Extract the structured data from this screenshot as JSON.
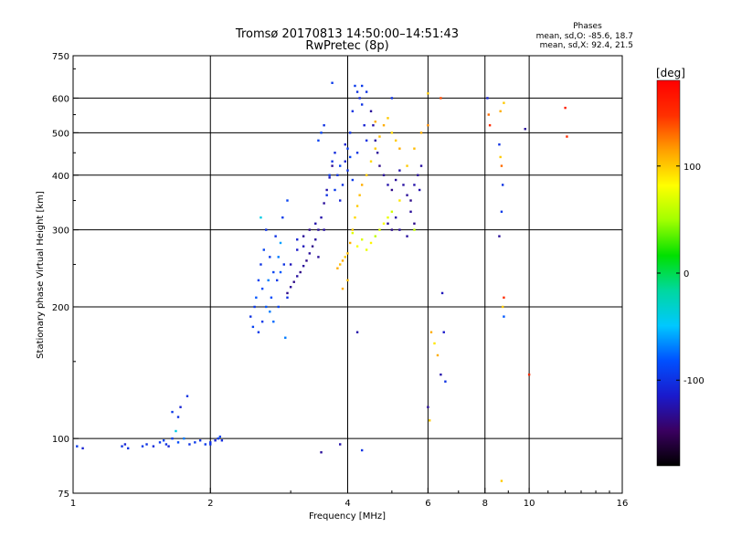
{
  "chart_data": {
    "type": "scatter",
    "title": "Tromsø 20170813 14:50:00–14:51:43",
    "subtitle": "RwPretec (8p)",
    "stats_title": "Phases",
    "stats": [
      "mean, sd,O: -85.6, 18.7",
      "mean, sd,X:  92.4, 21.5"
    ],
    "xlabel": "Frequency [MHz]",
    "ylabel": "Stationary phase Virtual Height [km]",
    "x_scale": "log",
    "y_scale": "log",
    "xlim": [
      1,
      16
    ],
    "ylim": [
      75,
      750
    ],
    "x_ticks": [
      1,
      2,
      4,
      6,
      8,
      10,
      16
    ],
    "y_ticks": [
      75,
      100,
      200,
      300,
      400,
      500,
      600,
      750
    ],
    "x_gridlines": [
      2,
      4,
      6,
      8,
      10
    ],
    "y_gridlines": [
      100,
      200,
      300,
      400,
      500,
      600
    ],
    "grid": true,
    "colorbar": {
      "label": "[deg]",
      "range": [
        -180,
        180
      ],
      "ticks": [
        -100,
        0,
        100
      ],
      "colors": [
        "#000000",
        "#3a0060",
        "#1a1acc",
        "#0050ff",
        "#00c8ff",
        "#00d8a0",
        "#00e000",
        "#a0ff00",
        "#ffff00",
        "#ffa000",
        "#ff3000",
        "#ff0000"
      ]
    },
    "series": [
      {
        "points": [
          [
            1.02,
            96,
            -95
          ],
          [
            1.05,
            95,
            -110
          ],
          [
            1.28,
            96,
            -100
          ],
          [
            1.3,
            97,
            -110
          ],
          [
            1.32,
            95,
            -100
          ],
          [
            1.42,
            96,
            -95
          ],
          [
            1.45,
            97,
            -100
          ],
          [
            1.5,
            96,
            -105
          ],
          [
            1.55,
            98,
            -95
          ],
          [
            1.58,
            99,
            -90
          ],
          [
            1.6,
            97,
            -100
          ],
          [
            1.62,
            96,
            -110
          ],
          [
            1.65,
            100,
            -90
          ],
          [
            1.7,
            98,
            -85
          ],
          [
            1.75,
            100,
            -70
          ],
          [
            1.8,
            97,
            -100
          ],
          [
            1.85,
            98,
            -95
          ],
          [
            1.9,
            99,
            -100
          ],
          [
            1.95,
            97,
            -95
          ],
          [
            2.0,
            98,
            -100
          ],
          [
            2.05,
            99,
            -110
          ],
          [
            2.08,
            100,
            -95
          ],
          [
            2.1,
            101,
            -90
          ],
          [
            2.12,
            99,
            -105
          ],
          [
            1.65,
            115,
            -95
          ],
          [
            1.7,
            112,
            -100
          ],
          [
            1.72,
            118,
            -110
          ],
          [
            1.68,
            104,
            -40
          ],
          [
            1.78,
            125,
            -100
          ],
          [
            2.0,
            97,
            -100
          ]
        ]
      },
      {
        "points": [
          [
            2.45,
            190,
            -100
          ],
          [
            2.48,
            180,
            -90
          ],
          [
            2.5,
            200,
            -95
          ],
          [
            2.52,
            210,
            -80
          ],
          [
            2.55,
            230,
            -90
          ],
          [
            2.55,
            175,
            -95
          ],
          [
            2.58,
            250,
            -100
          ],
          [
            2.6,
            220,
            -85
          ],
          [
            2.62,
            270,
            -90
          ],
          [
            2.65,
            300,
            -100
          ],
          [
            2.65,
            200,
            -80
          ],
          [
            2.68,
            230,
            -70
          ],
          [
            2.7,
            260,
            -95
          ],
          [
            2.72,
            210,
            -85
          ],
          [
            2.75,
            240,
            -90
          ],
          [
            2.75,
            185,
            -75
          ],
          [
            2.78,
            290,
            -100
          ],
          [
            2.8,
            230,
            -95
          ],
          [
            2.82,
            200,
            -90
          ],
          [
            2.82,
            260,
            -70
          ],
          [
            2.85,
            280,
            -60
          ],
          [
            2.88,
            320,
            -95
          ],
          [
            2.9,
            250,
            -100
          ],
          [
            2.92,
            170,
            -70
          ],
          [
            2.95,
            350,
            -90
          ],
          [
            2.95,
            210,
            -100
          ],
          [
            2.6,
            185,
            -95
          ],
          [
            2.7,
            195,
            -70
          ],
          [
            2.85,
            240,
            -80
          ],
          [
            2.58,
            320,
            -40
          ]
        ]
      },
      {
        "points": [
          [
            2.95,
            215,
            -135
          ],
          [
            3.0,
            222,
            -130
          ],
          [
            3.05,
            228,
            -135
          ],
          [
            3.1,
            235,
            -128
          ],
          [
            3.15,
            240,
            -135
          ],
          [
            3.2,
            248,
            -130
          ],
          [
            3.25,
            255,
            -135
          ],
          [
            3.3,
            265,
            -130
          ],
          [
            3.35,
            275,
            -135
          ],
          [
            3.4,
            285,
            -128
          ],
          [
            3.45,
            300,
            -130
          ],
          [
            3.5,
            320,
            -125
          ],
          [
            3.55,
            345,
            -130
          ],
          [
            3.6,
            370,
            -125
          ],
          [
            3.65,
            395,
            -120
          ],
          [
            3.7,
            420,
            -130
          ],
          [
            3.0,
            250,
            -120
          ],
          [
            3.1,
            270,
            -115
          ],
          [
            3.2,
            290,
            -130
          ],
          [
            3.3,
            300,
            -135
          ],
          [
            3.4,
            310,
            -125
          ],
          [
            3.1,
            285,
            -110
          ],
          [
            3.2,
            275,
            -120
          ],
          [
            3.45,
            260,
            -130
          ],
          [
            3.55,
            300,
            -128
          ]
        ]
      },
      {
        "points": [
          [
            3.6,
            360,
            -100
          ],
          [
            3.65,
            400,
            -95
          ],
          [
            3.7,
            430,
            -100
          ],
          [
            3.75,
            450,
            -105
          ],
          [
            3.8,
            400,
            -100
          ],
          [
            3.85,
            420,
            -90
          ],
          [
            3.9,
            380,
            -100
          ],
          [
            3.95,
            430,
            -110
          ],
          [
            4.0,
            460,
            -95
          ],
          [
            4.05,
            500,
            -100
          ],
          [
            4.1,
            560,
            -100
          ],
          [
            4.15,
            640,
            -95
          ],
          [
            4.2,
            620,
            -100
          ],
          [
            4.25,
            600,
            -105
          ],
          [
            4.3,
            580,
            -100
          ],
          [
            4.35,
            520,
            -110
          ],
          [
            4.4,
            480,
            -100
          ],
          [
            4.3,
            640,
            -95
          ],
          [
            4.4,
            620,
            -100
          ],
          [
            3.5,
            500,
            -90
          ],
          [
            3.55,
            520,
            -100
          ],
          [
            3.45,
            480,
            -90
          ],
          [
            3.75,
            370,
            -95
          ],
          [
            3.85,
            350,
            -110
          ],
          [
            4.0,
            410,
            -100
          ],
          [
            4.1,
            390,
            -95
          ],
          [
            4.2,
            450,
            -100
          ],
          [
            3.95,
            470,
            -110
          ],
          [
            4.05,
            440,
            -90
          ],
          [
            3.7,
            650,
            -95
          ]
        ]
      },
      {
        "points": [
          [
            4.5,
            560,
            -130
          ],
          [
            4.55,
            520,
            -125
          ],
          [
            4.6,
            480,
            -128
          ],
          [
            4.65,
            450,
            -130
          ],
          [
            4.7,
            420,
            -135
          ],
          [
            4.8,
            400,
            -130
          ],
          [
            4.9,
            380,
            -125
          ],
          [
            5.0,
            370,
            -135
          ],
          [
            5.1,
            390,
            -130
          ],
          [
            5.2,
            410,
            -125
          ],
          [
            5.3,
            380,
            -128
          ],
          [
            5.4,
            360,
            -130
          ],
          [
            5.5,
            350,
            -135
          ],
          [
            5.6,
            380,
            -125
          ],
          [
            5.7,
            400,
            -130
          ],
          [
            5.8,
            420,
            -128
          ],
          [
            4.9,
            310,
            -130
          ],
          [
            5.0,
            300,
            -135
          ],
          [
            5.1,
            320,
            -125
          ],
          [
            5.2,
            300,
            -130
          ],
          [
            5.4,
            290,
            -128
          ],
          [
            5.6,
            310,
            -135
          ],
          [
            5.0,
            600,
            -100
          ],
          [
            5.5,
            330,
            -130
          ],
          [
            5.75,
            370,
            -125
          ]
        ]
      },
      {
        "points": [
          [
            3.8,
            245,
            110
          ],
          [
            3.85,
            250,
            105
          ],
          [
            3.9,
            255,
            110
          ],
          [
            3.95,
            260,
            100
          ],
          [
            4.0,
            265,
            105
          ],
          [
            4.05,
            280,
            110
          ],
          [
            4.1,
            300,
            100
          ],
          [
            4.15,
            320,
            95
          ],
          [
            4.2,
            340,
            100
          ],
          [
            4.25,
            360,
            105
          ],
          [
            4.3,
            380,
            110
          ],
          [
            4.4,
            400,
            100
          ],
          [
            4.5,
            430,
            95
          ],
          [
            4.6,
            460,
            100
          ],
          [
            4.7,
            490,
            105
          ],
          [
            4.8,
            520,
            110
          ],
          [
            4.9,
            540,
            100
          ],
          [
            5.0,
            500,
            95
          ],
          [
            5.1,
            480,
            100
          ],
          [
            5.2,
            460,
            110
          ],
          [
            4.2,
            275,
            80
          ],
          [
            4.3,
            285,
            70
          ],
          [
            4.4,
            270,
            75
          ],
          [
            4.5,
            280,
            85
          ],
          [
            4.6,
            290,
            60
          ],
          [
            4.7,
            300,
            70
          ],
          [
            4.8,
            310,
            80
          ],
          [
            4.9,
            320,
            75
          ],
          [
            5.0,
            330,
            65
          ],
          [
            5.2,
            350,
            90
          ],
          [
            5.4,
            420,
            100
          ],
          [
            5.6,
            460,
            105
          ],
          [
            5.8,
            500,
            110
          ],
          [
            6.0,
            520,
            120
          ],
          [
            3.9,
            220,
            110
          ],
          [
            4.0,
            230,
            105
          ],
          [
            4.1,
            295,
            70
          ],
          [
            4.6,
            530,
            110
          ],
          [
            6.0,
            615,
            100
          ],
          [
            6.4,
            600,
            140
          ],
          [
            6.1,
            175,
            110
          ],
          [
            6.2,
            165,
            90
          ],
          [
            6.3,
            155,
            110
          ],
          [
            6.05,
            110,
            100
          ],
          [
            5.6,
            300,
            60
          ]
        ]
      },
      {
        "points": [
          [
            6.0,
            118,
            -130
          ],
          [
            6.4,
            140,
            -125
          ],
          [
            6.45,
            215,
            -120
          ],
          [
            6.5,
            175,
            -115
          ],
          [
            6.55,
            135,
            -100
          ],
          [
            3.5,
            93,
            -130
          ],
          [
            3.85,
            97,
            -125
          ],
          [
            4.3,
            94,
            -100
          ],
          [
            4.2,
            175,
            -125
          ]
        ]
      },
      {
        "points": [
          [
            8.1,
            600,
            -110
          ],
          [
            8.15,
            550,
            130
          ],
          [
            8.2,
            520,
            150
          ],
          [
            8.6,
            470,
            -100
          ],
          [
            8.65,
            440,
            100
          ],
          [
            8.7,
            420,
            130
          ],
          [
            8.75,
            380,
            -100
          ],
          [
            8.7,
            330,
            -95
          ],
          [
            8.6,
            290,
            -130
          ],
          [
            8.8,
            210,
            150
          ],
          [
            8.75,
            200,
            100
          ],
          [
            8.8,
            190,
            -80
          ],
          [
            8.7,
            80,
            100
          ],
          [
            9.8,
            510,
            -130
          ],
          [
            10.0,
            140,
            150
          ],
          [
            12.0,
            570,
            160
          ],
          [
            12.1,
            490,
            150
          ],
          [
            8.8,
            585,
            100
          ],
          [
            8.65,
            560,
            110
          ]
        ]
      }
    ]
  }
}
